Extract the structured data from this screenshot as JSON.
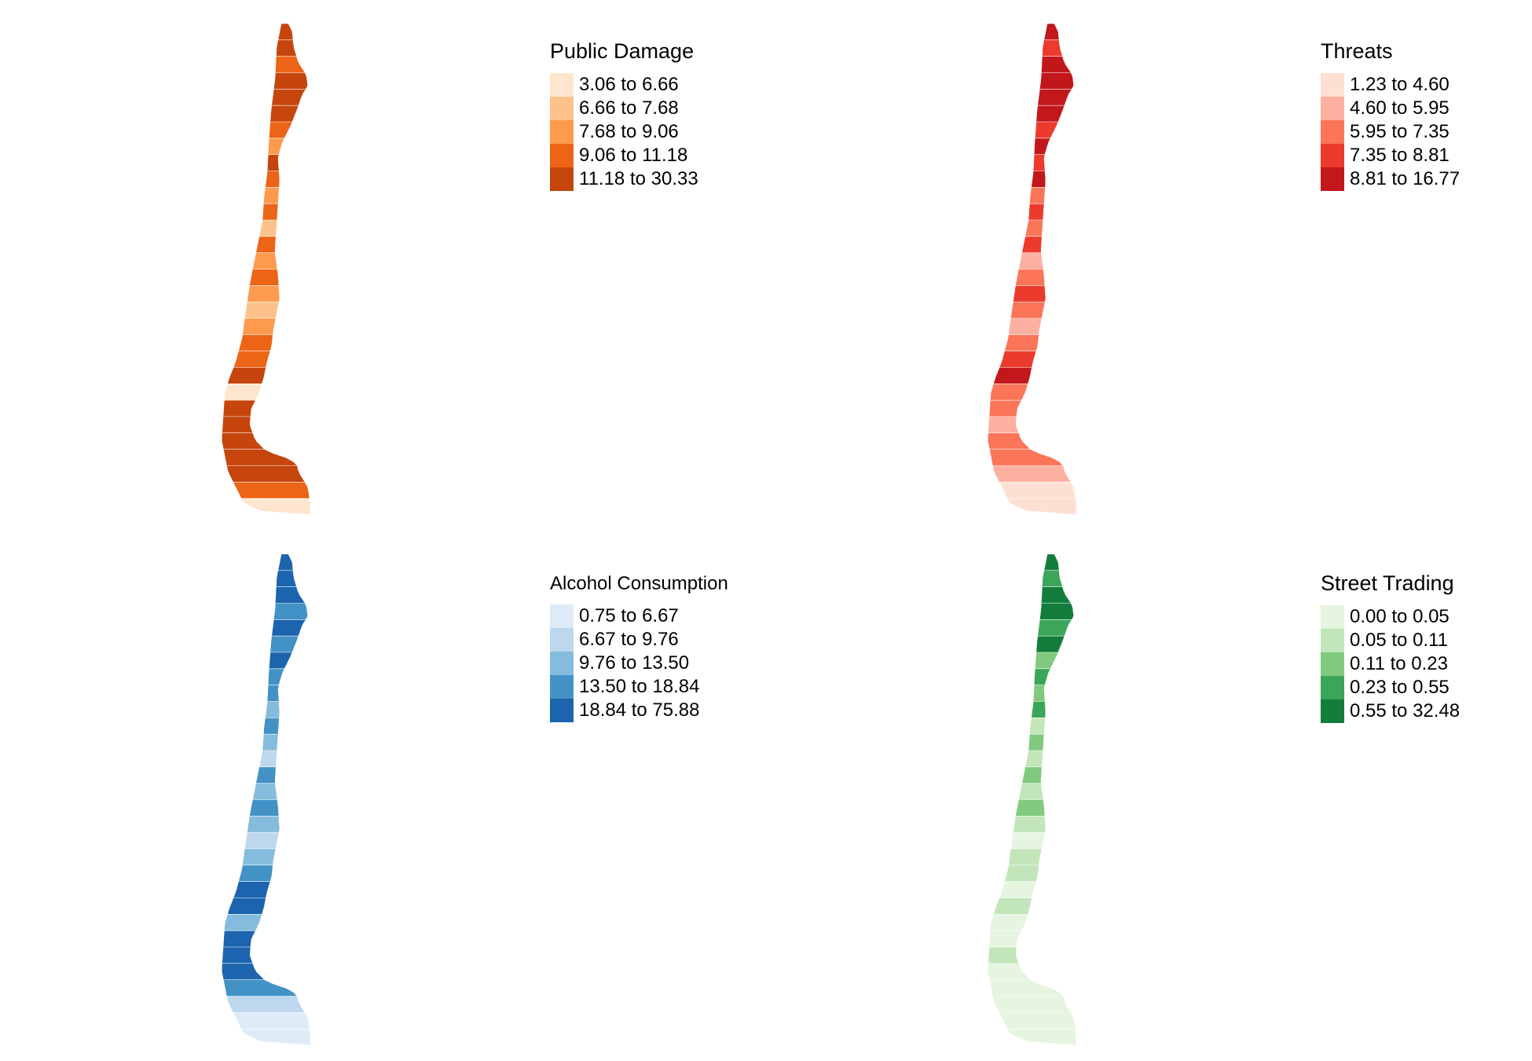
{
  "maps": [
    {
      "title": "Public Damage",
      "palette": [
        "#FEE6CE",
        "#FDC28C",
        "#FD9A4E",
        "#EC6416",
        "#C5450C"
      ],
      "classes": [
        "3.06 to 6.66",
        "6.66 to 7.68",
        "7.68 to 9.06",
        "9.06 to 11.18",
        "11.18 to 30.33"
      ]
    },
    {
      "title": "Threats",
      "palette": [
        "#FEE0D2",
        "#FCB0A0",
        "#FB7559",
        "#EC3A2D",
        "#C2181C"
      ],
      "classes": [
        "1.23 to 4.60",
        "4.60 to 5.95",
        "5.95 to 7.35",
        "7.35 to 8.81",
        "8.81 to 16.77"
      ]
    },
    {
      "title": "Alcohol Consumption",
      "palette": [
        "#DEEBF7",
        "#BDD7EE",
        "#85BCDD",
        "#4292C6",
        "#1C64AD"
      ],
      "classes": [
        "0.75 to 6.67",
        "6.67 to 9.76",
        "9.76 to 13.50",
        "13.50 to 18.84",
        "18.84 to 75.88"
      ]
    },
    {
      "title": "Street Trading",
      "palette": [
        "#E5F5E0",
        "#C2E5BA",
        "#81C97F",
        "#3BA55A",
        "#137E3B"
      ],
      "classes": [
        "0.00 to 0.05",
        "0.05 to 0.11",
        "0.11 to 0.23",
        "0.23 to 0.55",
        "0.55 to 32.48"
      ]
    }
  ]
}
